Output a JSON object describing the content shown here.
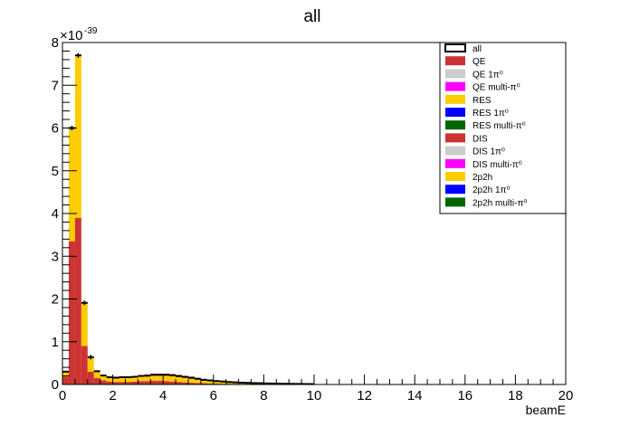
{
  "chart_data": {
    "type": "bar",
    "stacked": true,
    "title": "all",
    "xlabel": "beamE",
    "ylabel": "",
    "xlim": [
      0,
      20
    ],
    "ylim": [
      0,
      8
    ],
    "y_multiplier": "×10",
    "y_exponent": "-39",
    "bin_width": 0.25,
    "x_ticks": [
      "0",
      "2",
      "4",
      "6",
      "8",
      "10",
      "12",
      "14",
      "16",
      "18",
      "20"
    ],
    "y_ticks": [
      "0",
      "1",
      "2",
      "3",
      "4",
      "5",
      "6",
      "7",
      "8"
    ],
    "bins_x": [
      0.0,
      0.25,
      0.5,
      0.75,
      1.0,
      1.25,
      1.5,
      1.75,
      2.0,
      2.25,
      2.5,
      2.75,
      3.0,
      3.25,
      3.5,
      3.75,
      4.0,
      4.25,
      4.5,
      4.75,
      5.0,
      5.25,
      5.5,
      5.75,
      6.0,
      6.25,
      6.5,
      6.75,
      7.0,
      7.25,
      7.5,
      7.75,
      8.0,
      8.25,
      8.5,
      8.75,
      9.0,
      9.25,
      9.5,
      9.75,
      10.0
    ],
    "series": [
      {
        "name": "QE",
        "color": "#cc3333",
        "values": [
          0.18,
          3.35,
          3.9,
          0.9,
          0.3,
          0.15,
          0.1,
          0.07,
          0.06,
          0.06,
          0.06,
          0.07,
          0.08,
          0.08,
          0.09,
          0.09,
          0.08,
          0.07,
          0.06,
          0.05,
          0.04,
          0.035,
          0.03,
          0.025,
          0.02,
          0.018,
          0.015,
          0.012,
          0.01,
          0.01,
          0.008,
          0.008,
          0.006,
          0.005,
          0.005,
          0.004,
          0.004,
          0.003,
          0.003,
          0.002
        ]
      },
      {
        "name": "RES",
        "color": "#ffcc00",
        "values": [
          0.1,
          2.6,
          3.75,
          0.98,
          0.32,
          0.15,
          0.1,
          0.08,
          0.08,
          0.09,
          0.09,
          0.09,
          0.1,
          0.1,
          0.11,
          0.11,
          0.12,
          0.12,
          0.11,
          0.1,
          0.09,
          0.075,
          0.06,
          0.05,
          0.045,
          0.037,
          0.03,
          0.025,
          0.02,
          0.018,
          0.016,
          0.014,
          0.012,
          0.01,
          0.009,
          0.008,
          0.007,
          0.006,
          0.005,
          0.005
        ]
      },
      {
        "name": "DIS",
        "color": "#cc3333",
        "values": [
          0,
          0,
          0,
          0,
          0,
          0,
          0,
          0.01,
          0.01,
          0.01,
          0.01,
          0.01,
          0.01,
          0.02,
          0.02,
          0.02,
          0.02,
          0.02,
          0.02,
          0.02,
          0.02,
          0.02,
          0.015,
          0.015,
          0.01,
          0.01,
          0.01,
          0.01,
          0.01,
          0.008,
          0.007,
          0.006,
          0.005,
          0.005,
          0.004,
          0.004,
          0.003,
          0.003,
          0.002,
          0.002
        ]
      },
      {
        "name": "2p2h",
        "color": "#ffcc00",
        "values": [
          0.02,
          0.05,
          0.05,
          0.03,
          0.02,
          0.01,
          0.01,
          0.01,
          0.01,
          0.01,
          0.01,
          0.01,
          0.01,
          0.01,
          0.01,
          0.01,
          0.01,
          0.01,
          0.01,
          0.01,
          0.01,
          0.005,
          0.005,
          0.005,
          0.005,
          0.005,
          0.003,
          0.003,
          0.003,
          0.002,
          0.002,
          0.002,
          0.002,
          0.002,
          0.001,
          0.001,
          0.001,
          0.001,
          0.001,
          0.001
        ]
      }
    ],
    "legend": [
      {
        "label": "all",
        "color": "#ffffff",
        "border": "#000000"
      },
      {
        "label": "QE",
        "color": "#cc3333"
      },
      {
        "label": "QE 1π⁰",
        "color": "#cccccc"
      },
      {
        "label": "QE multi-π⁰",
        "color": "#ff00ff"
      },
      {
        "label": "RES",
        "color": "#ffcc00"
      },
      {
        "label": "RES 1π⁰",
        "color": "#0000ff"
      },
      {
        "label": "RES multi-π⁰",
        "color": "#006600"
      },
      {
        "label": "DIS",
        "color": "#cc3333"
      },
      {
        "label": "DIS 1π⁰",
        "color": "#cccccc"
      },
      {
        "label": "DIS multi-π⁰",
        "color": "#ff00ff"
      },
      {
        "label": "2p2h",
        "color": "#ffcc00"
      },
      {
        "label": "2p2h 1π⁰",
        "color": "#0000ff"
      },
      {
        "label": "2p2h multi-π⁰",
        "color": "#006600"
      }
    ],
    "legend_position": "top-right",
    "grid": false
  }
}
